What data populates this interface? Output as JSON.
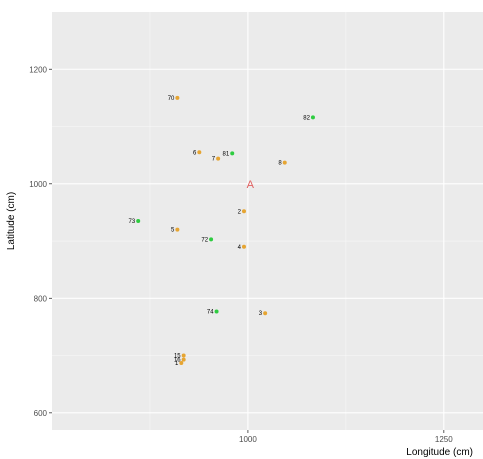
{
  "chart_data": {
    "type": "scatter",
    "xlabel": "Longitude (cm)",
    "ylabel": "Latitude (cm)",
    "xlim": [
      750,
      1300
    ],
    "ylim": [
      570,
      1300
    ],
    "x_ticks": [
      1000,
      1250
    ],
    "y_ticks": [
      600,
      800,
      1000,
      1200
    ],
    "grid": true,
    "legend": "none",
    "colors": {
      "panel": "#ebebeb",
      "grid_major": "#ffffff",
      "orange": "#e6a532",
      "green": "#2ecc40",
      "annotation": "#e06060"
    },
    "points": [
      {
        "label": "70",
        "x": 910,
        "y": 1150,
        "color": "orange"
      },
      {
        "label": "82",
        "x": 1083,
        "y": 1116,
        "color": "green"
      },
      {
        "label": "6",
        "x": 938,
        "y": 1055,
        "color": "orange"
      },
      {
        "label": "81",
        "x": 980,
        "y": 1053,
        "color": "green"
      },
      {
        "label": "7",
        "x": 962,
        "y": 1044,
        "color": "orange"
      },
      {
        "label": "8",
        "x": 1047,
        "y": 1037,
        "color": "orange"
      },
      {
        "label": "2",
        "x": 995,
        "y": 952,
        "color": "orange"
      },
      {
        "label": "73",
        "x": 860,
        "y": 935,
        "color": "green"
      },
      {
        "label": "5",
        "x": 910,
        "y": 920,
        "color": "orange"
      },
      {
        "label": "72",
        "x": 953,
        "y": 903,
        "color": "green"
      },
      {
        "label": "4",
        "x": 995,
        "y": 890,
        "color": "orange"
      },
      {
        "label": "74",
        "x": 960,
        "y": 777,
        "color": "green"
      },
      {
        "label": "3",
        "x": 1022,
        "y": 774,
        "color": "orange"
      },
      {
        "label": "15",
        "x": 918,
        "y": 700,
        "color": "orange"
      },
      {
        "label": "16",
        "x": 918,
        "y": 693,
        "color": "orange"
      },
      {
        "label": "1",
        "x": 915,
        "y": 687,
        "color": "orange"
      }
    ],
    "annotations": [
      {
        "text": "A",
        "x": 1003,
        "y": 1000
      }
    ]
  }
}
